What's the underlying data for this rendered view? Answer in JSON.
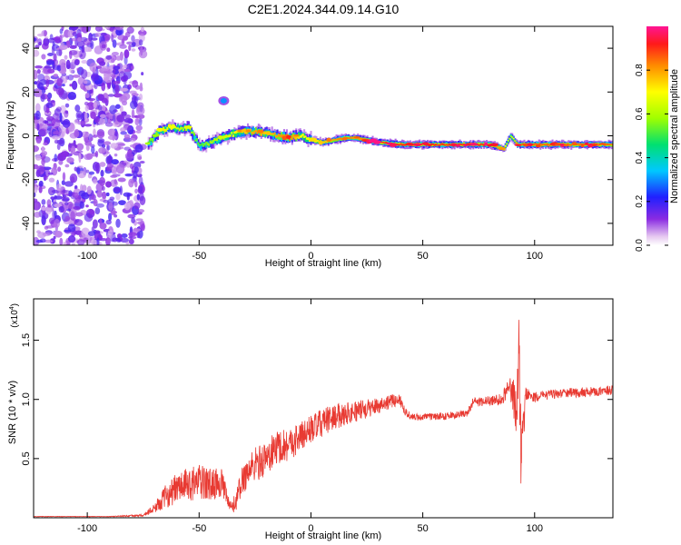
{
  "title": "C2E1.2024.344.09.14.G10",
  "chart_data": [
    {
      "type": "heatmap",
      "xlabel": "Height of straight line (km)",
      "ylabel": "Frequency (Hz)",
      "xlim": [
        -124,
        135
      ],
      "ylim": [
        -50,
        50
      ],
      "xticks": [
        -100,
        -50,
        0,
        50,
        100
      ],
      "yticks": [
        -40,
        -20,
        0,
        20,
        40
      ],
      "colorbar": {
        "label": "Normalized spectral amplitude",
        "range": [
          0.0,
          1.0
        ],
        "ticks": [
          0.0,
          0.2,
          0.4,
          0.6,
          0.8
        ],
        "tick_labels": [
          "0.0",
          "0.2",
          "0.4",
          "0.6",
          "0.8"
        ]
      },
      "noise_region_x": [
        -124,
        -75
      ],
      "ridge": {
        "x": [
          -73,
          -68,
          -63,
          -58,
          -55,
          -50,
          -45,
          -40,
          -35,
          -30,
          -25,
          -20,
          -15,
          -10,
          -5,
          0,
          5,
          10,
          15,
          20,
          30,
          40,
          50,
          60,
          70,
          80,
          86,
          89,
          92,
          100,
          110,
          120,
          135
        ],
        "freq": [
          -4,
          2,
          4,
          3,
          4,
          -5,
          -3,
          -1,
          1,
          2,
          2,
          1,
          0,
          -1,
          0,
          -2,
          -3,
          -2,
          -1,
          -1,
          -3,
          -4,
          -4,
          -4,
          -4,
          -4,
          -6,
          0,
          -4,
          -4,
          -4,
          -4,
          -4
        ],
        "amplitude": [
          0.5,
          0.6,
          0.7,
          0.6,
          0.6,
          0.5,
          0.6,
          0.6,
          0.7,
          0.75,
          0.8,
          0.75,
          0.8,
          0.85,
          0.7,
          0.7,
          0.75,
          0.8,
          0.85,
          0.8,
          0.9,
          0.9,
          0.9,
          0.9,
          0.9,
          0.9,
          0.7,
          0.6,
          0.85,
          0.85,
          0.85,
          0.85,
          0.85
        ]
      },
      "blob": {
        "x": -39,
        "freq": 16,
        "amplitude": 0.3
      }
    },
    {
      "type": "line",
      "xlabel": "Height of straight line (km)",
      "ylabel": "SNR (10 * v/v)",
      "y_multiplier": "(x10",
      "y_multiplier_exp": "4",
      "xlim": [
        -124,
        135
      ],
      "ylim": [
        0,
        1.85
      ],
      "xticks": [
        -100,
        -50,
        0,
        50,
        100
      ],
      "yticks": [
        0.5,
        1.0,
        1.5
      ],
      "ytick_labels": [
        "0.5",
        "1.0",
        "1.5"
      ],
      "color": "#e83a32",
      "series": [
        {
          "x": [
            -124,
            -90,
            -75,
            -70,
            -65,
            -60,
            -55,
            -50,
            -45,
            -40,
            -36,
            -34,
            -30,
            -25,
            -20,
            -15,
            -10,
            -5,
            0,
            5,
            10,
            15,
            20,
            25,
            30,
            35,
            40,
            42,
            45,
            50,
            60,
            70,
            72,
            75,
            80,
            85,
            88,
            90,
            92,
            93,
            94,
            96,
            100,
            110,
            120,
            130,
            135
          ],
          "y": [
            0.01,
            0.01,
            0.02,
            0.08,
            0.18,
            0.25,
            0.28,
            0.3,
            0.28,
            0.3,
            0.08,
            0.12,
            0.35,
            0.45,
            0.5,
            0.6,
            0.62,
            0.68,
            0.75,
            0.8,
            0.85,
            0.88,
            0.9,
            0.92,
            0.95,
            0.98,
            1.0,
            0.9,
            0.85,
            0.85,
            0.86,
            0.88,
            0.97,
            0.98,
            0.99,
            1.0,
            1.1,
            1.05,
            0.9,
            1.3,
            0.5,
            1.05,
            1.02,
            1.05,
            1.06,
            1.07,
            1.08
          ],
          "noise": [
            0.002,
            0.002,
            0.01,
            0.04,
            0.1,
            0.13,
            0.14,
            0.15,
            0.14,
            0.12,
            0.05,
            0.08,
            0.14,
            0.15,
            0.15,
            0.15,
            0.14,
            0.13,
            0.12,
            0.12,
            0.11,
            0.1,
            0.09,
            0.08,
            0.07,
            0.06,
            0.05,
            0.04,
            0.03,
            0.03,
            0.03,
            0.03,
            0.04,
            0.04,
            0.04,
            0.05,
            0.1,
            0.15,
            0.2,
            0.45,
            0.3,
            0.06,
            0.04,
            0.04,
            0.04,
            0.04,
            0.04
          ]
        }
      ]
    }
  ]
}
